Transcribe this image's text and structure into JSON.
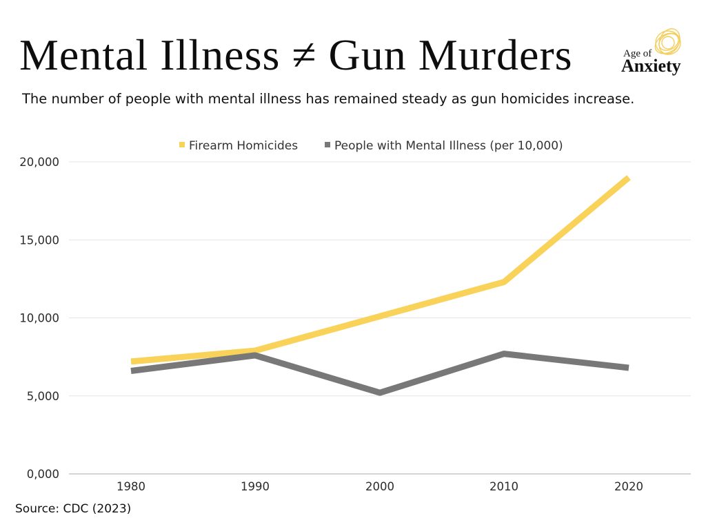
{
  "header": {
    "title": "Mental Illness ≠ Gun Murders",
    "subtitle": "The number of people with mental illness has remained steady as gun homicides increase."
  },
  "brand": {
    "line1": "Age of",
    "line2": "Anxiety",
    "accent_color": "#f2c94c"
  },
  "footer": {
    "source": "Source: CDC (2023)"
  },
  "chart_data": {
    "type": "line",
    "title": "",
    "xlabel": "",
    "ylabel": "",
    "categories": [
      "1980",
      "1990",
      "2000",
      "2010",
      "2020"
    ],
    "series": [
      {
        "name": "Firearm Homicides",
        "color": "#f9d25a",
        "values": [
          7200,
          7900,
          10100,
          12300,
          19000
        ]
      },
      {
        "name": "People with Mental Illness (per 10,000)",
        "color": "#787878",
        "values": [
          6600,
          7600,
          5200,
          7700,
          6800
        ]
      }
    ],
    "ylim": [
      0,
      20000
    ],
    "yticks": [
      0,
      5000,
      10000,
      15000,
      20000
    ],
    "ytick_labels": [
      "0,000",
      "5,000",
      "10,000",
      "15,000",
      "20,000"
    ],
    "grid": "horizontal",
    "legend_position": "top-center"
  }
}
